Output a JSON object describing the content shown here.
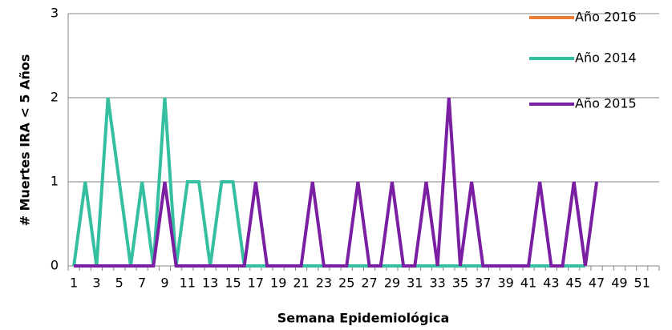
{
  "chart_data": {
    "type": "line",
    "x_label": "Semana Epidemiológica",
    "y_label": "# Muertes IRA < 5 Años",
    "categories": [
      "1",
      null,
      "3",
      null,
      "5",
      null,
      "7",
      null,
      "9",
      null,
      "11",
      null,
      "13",
      null,
      "15",
      null,
      "17",
      null,
      "19",
      null,
      "21",
      null,
      "23",
      null,
      "25",
      null,
      "27",
      null,
      "29",
      null,
      "31",
      null,
      "33",
      null,
      "35",
      null,
      "37",
      null,
      "39",
      null,
      "41",
      null,
      "43",
      null,
      "45",
      null,
      "47",
      null,
      "49",
      null,
      "51",
      null
    ],
    "series": [
      {
        "name": "Año 2016",
        "color": "#ed7d31",
        "values": [
          null,
          null,
          null,
          null,
          null,
          null,
          null,
          null,
          null,
          null,
          null,
          null,
          null,
          null,
          null,
          null,
          null,
          null,
          null,
          null,
          null,
          null,
          null,
          null,
          null,
          null,
          null,
          null,
          null,
          null,
          null,
          null,
          null,
          null,
          null,
          null,
          null,
          null,
          null,
          null,
          null,
          null,
          null,
          null,
          null,
          null,
          null,
          null,
          null,
          null,
          null,
          null
        ]
      },
      {
        "name": "Año 2014",
        "color": "#33bfa0",
        "values": [
          0,
          1,
          0,
          2,
          1,
          0,
          1,
          0,
          2,
          0,
          1,
          1,
          0,
          1,
          1,
          0,
          0,
          0,
          0,
          0,
          0,
          0,
          0,
          0,
          0,
          0,
          0,
          0,
          0,
          0,
          0,
          0,
          0,
          0,
          0,
          0,
          0,
          0,
          0,
          0,
          0,
          0,
          0,
          0,
          0,
          0,
          null,
          null,
          null,
          null,
          null,
          null
        ]
      },
      {
        "name": "Año 2015",
        "color": "#7a1fa2",
        "values": [
          0,
          0,
          0,
          0,
          0,
          0,
          0,
          0,
          1,
          0,
          0,
          0,
          0,
          0,
          0,
          0,
          1,
          0,
          0,
          0,
          0,
          1,
          0,
          0,
          0,
          1,
          0,
          0,
          1,
          0,
          0,
          1,
          0,
          2,
          0,
          1,
          0,
          0,
          0,
          0,
          0,
          1,
          0,
          0,
          1,
          0,
          1,
          null,
          null,
          null,
          null,
          null
        ]
      }
    ],
    "ylim": [
      0,
      3
    ],
    "yticks": [
      0,
      1,
      2,
      3
    ],
    "grid": true
  }
}
